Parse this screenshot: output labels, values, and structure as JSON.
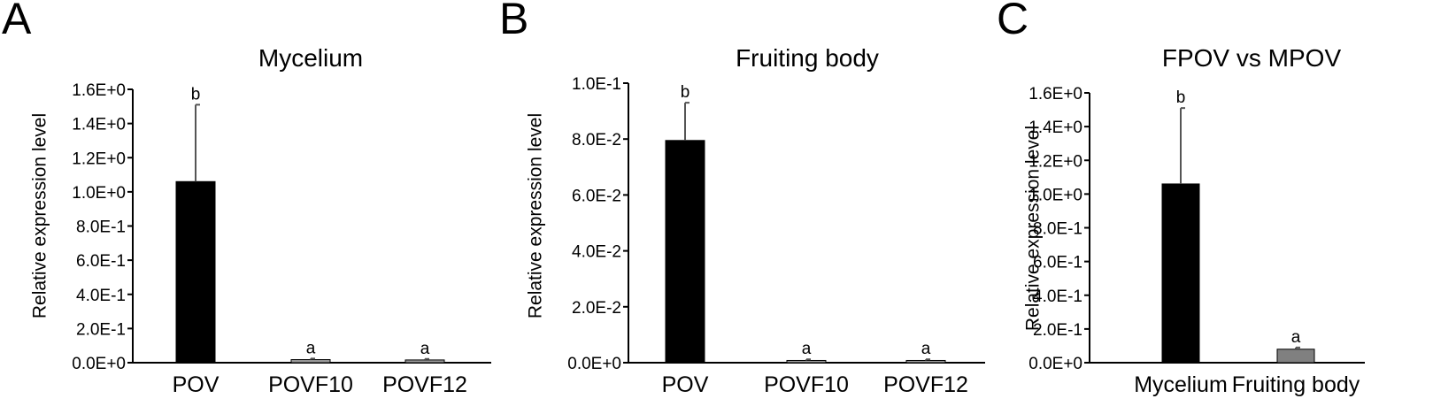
{
  "chart_data": [
    {
      "type": "bar",
      "panel": "A",
      "title": "Mycelium",
      "ylabel": "Relative expression level",
      "categories": [
        "POV",
        "POVF10",
        "POVF12"
      ],
      "values": [
        1.06,
        0.018,
        0.016
      ],
      "errors": [
        0.45,
        0.006,
        0.006
      ],
      "significance": [
        "b",
        "a",
        "a"
      ],
      "bar_colors": [
        "#000000",
        "#9a9a9a",
        "#9a9a9a"
      ],
      "ylim": [
        0,
        1.6
      ],
      "yticks": [
        0,
        0.2,
        0.4,
        0.6,
        0.8,
        1.0,
        1.2,
        1.4,
        1.6
      ],
      "ytick_labels": [
        "0.0E+0",
        "2.0E-1",
        "4.0E-1",
        "6.0E-1",
        "8.0E-1",
        "1.0E+0",
        "1.2E+0",
        "1.4E+0",
        "1.6E+0"
      ],
      "grid": false
    },
    {
      "type": "bar",
      "panel": "B",
      "title": "Fruiting body",
      "ylabel": "Relative expression level",
      "categories": [
        "POV",
        "POVF10",
        "POVF12"
      ],
      "values": [
        0.0795,
        0.0008,
        0.0008
      ],
      "errors": [
        0.0135,
        0.0004,
        0.0004
      ],
      "significance": [
        "b",
        "a",
        "a"
      ],
      "bar_colors": [
        "#000000",
        "#9a9a9a",
        "#9a9a9a"
      ],
      "ylim": [
        0,
        0.1
      ],
      "yticks": [
        0,
        0.02,
        0.04,
        0.06,
        0.08,
        0.1
      ],
      "ytick_labels": [
        "0.0E+0",
        "2.0E-2",
        "4.0E-2",
        "6.0E-2",
        "8.0E-2",
        "1.0E-1"
      ],
      "grid": false
    },
    {
      "type": "bar",
      "panel": "C",
      "title": "FPOV vs MPOV",
      "ylabel": "Relative expression level",
      "categories": [
        "Mycelium",
        "Fruiting body"
      ],
      "values": [
        1.06,
        0.08
      ],
      "errors": [
        0.45,
        0.01
      ],
      "significance": [
        "b",
        "a"
      ],
      "bar_colors": [
        "#000000",
        "#808080"
      ],
      "ylim": [
        0,
        1.6
      ],
      "yticks": [
        0,
        0.2,
        0.4,
        0.6,
        0.8,
        1.0,
        1.2,
        1.4,
        1.6
      ],
      "ytick_labels": [
        "0.0E+0",
        "2.0E-1",
        "4.0E-1",
        "6.0E-1",
        "8.0E-1",
        "1.0E+0",
        "1.2E+0",
        "1.4E+0",
        "1.6E+0"
      ],
      "grid": false
    }
  ]
}
